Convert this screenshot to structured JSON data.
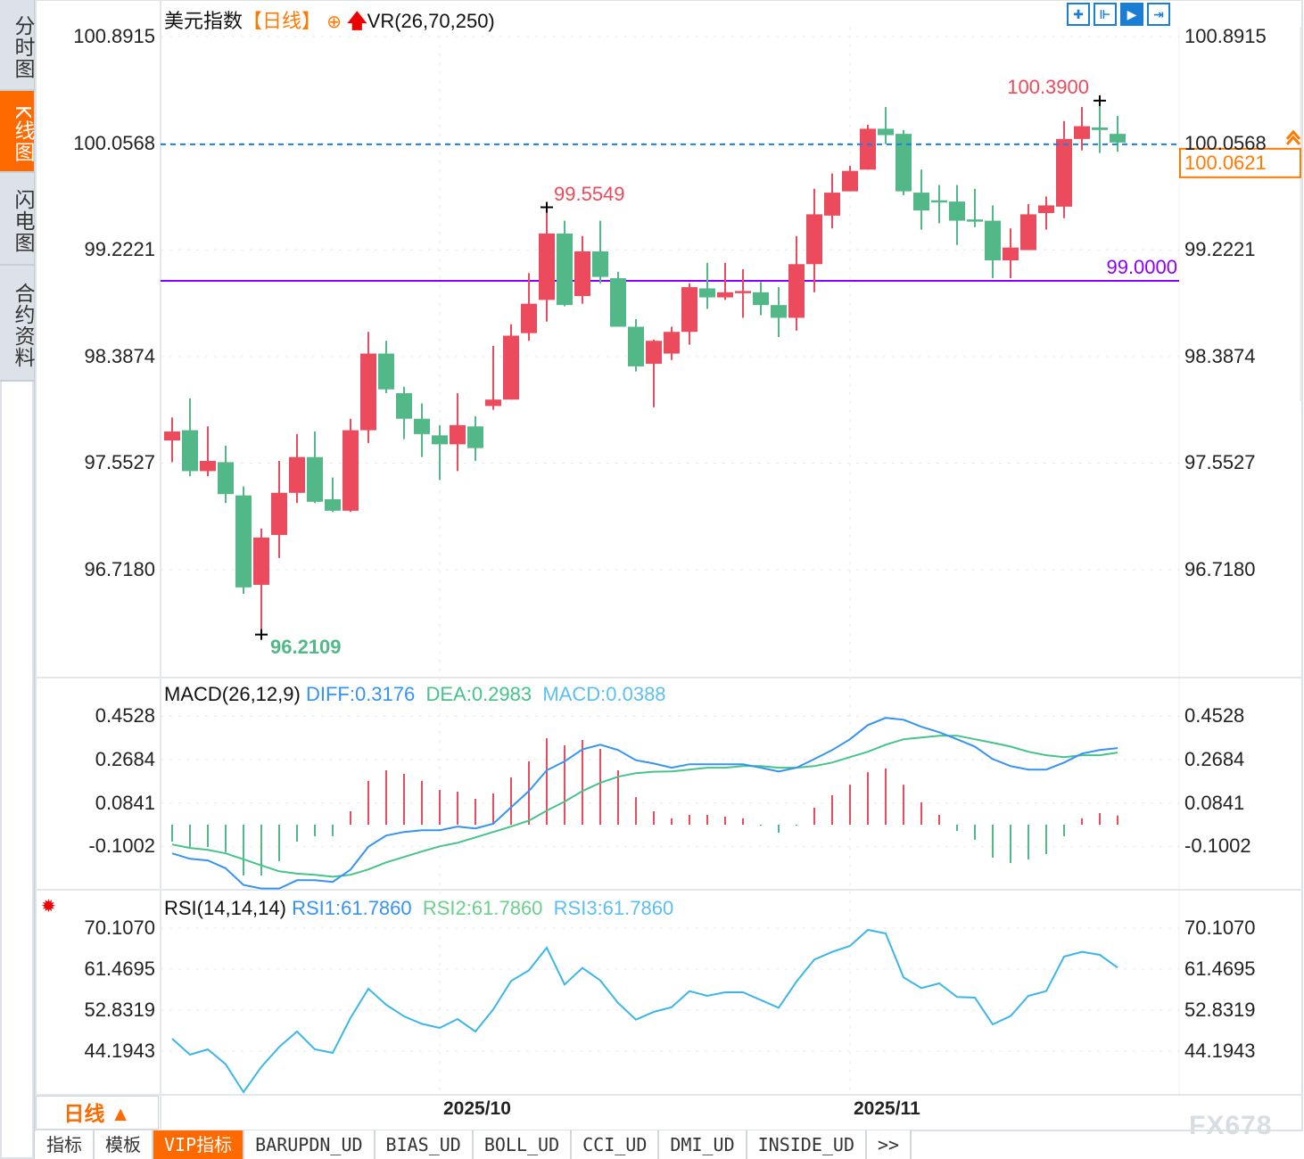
{
  "sidebar": {
    "tabs": [
      {
        "label": "分时图",
        "active": false
      },
      {
        "label": "K线图",
        "active": true
      },
      {
        "label": "闪电图",
        "active": false
      },
      {
        "label": "合约资料",
        "active": false
      }
    ]
  },
  "header": {
    "title": "美元指数",
    "period": "【日线】",
    "indicator": "VR(26,70,250)",
    "add_icon": "circle-plus-icon",
    "arrow_icon": "red-up-arrow-icon"
  },
  "toolbar": {
    "icons": [
      "crosshair-icon",
      "zoom-range-icon",
      "play-range-icon",
      "scroll-right-icon"
    ]
  },
  "colors": {
    "up": "#eb4b5c",
    "down": "#52b887",
    "diff": "#3593f2",
    "dea": "#46c38a",
    "rsi": "#3bb6e8",
    "support": "#8a00ff",
    "last_price": "#ff7a00",
    "accent": "#ff6a00"
  },
  "chart_data": [
    {
      "type": "candlestick",
      "title": "美元指数",
      "y_ticks": [
        "100.8915",
        "100.0568",
        "99.2221",
        "98.3874",
        "97.5527",
        "96.7180"
      ],
      "ylim": [
        96.0,
        101.0
      ],
      "x_labels": [
        {
          "label": "2025/10",
          "index": 15
        },
        {
          "label": "2025/11",
          "index": 38
        }
      ],
      "ohlc": [
        [
          97.73,
          97.91,
          97.56,
          97.8
        ],
        [
          97.81,
          98.06,
          97.45,
          97.49
        ],
        [
          97.49,
          97.84,
          97.45,
          97.57
        ],
        [
          97.56,
          97.69,
          97.24,
          97.31
        ],
        [
          97.3,
          97.37,
          96.53,
          96.58
        ],
        [
          96.6,
          97.04,
          96.2109,
          96.97
        ],
        [
          96.99,
          97.57,
          96.81,
          97.32
        ],
        [
          97.32,
          97.78,
          97.24,
          97.6
        ],
        [
          97.6,
          97.8,
          97.24,
          97.25
        ],
        [
          97.27,
          97.44,
          97.17,
          97.18
        ],
        [
          97.18,
          97.9,
          97.17,
          97.81
        ],
        [
          97.81,
          98.58,
          97.71,
          98.41
        ],
        [
          98.41,
          98.51,
          98.1,
          98.13
        ],
        [
          98.1,
          98.15,
          97.74,
          97.9
        ],
        [
          97.9,
          98.02,
          97.6,
          97.78
        ],
        [
          97.77,
          97.85,
          97.42,
          97.7
        ],
        [
          97.7,
          98.1,
          97.49,
          97.85
        ],
        [
          97.84,
          97.92,
          97.57,
          97.67
        ],
        [
          98.0,
          98.47,
          97.97,
          98.05
        ],
        [
          98.05,
          98.64,
          98.05,
          98.55
        ],
        [
          98.57,
          99.04,
          98.51,
          98.8
        ],
        [
          98.83,
          99.5549,
          98.66,
          99.35
        ],
        [
          99.35,
          99.45,
          98.78,
          98.79
        ],
        [
          98.86,
          99.33,
          98.8,
          99.21
        ],
        [
          99.21,
          99.45,
          98.96,
          99.01
        ],
        [
          99.0,
          99.05,
          98.62,
          98.62
        ],
        [
          98.62,
          98.68,
          98.27,
          98.31
        ],
        [
          98.33,
          98.52,
          97.99,
          98.51
        ],
        [
          98.41,
          98.62,
          98.36,
          98.58
        ],
        [
          98.58,
          98.96,
          98.48,
          98.93
        ],
        [
          98.92,
          99.12,
          98.76,
          98.85
        ],
        [
          98.85,
          99.12,
          98.83,
          98.89
        ],
        [
          98.89,
          99.07,
          98.69,
          98.9
        ],
        [
          98.89,
          98.97,
          98.71,
          98.79
        ],
        [
          98.79,
          98.93,
          98.54,
          98.69
        ],
        [
          98.69,
          99.33,
          98.59,
          99.11
        ],
        [
          99.11,
          99.7,
          98.89,
          99.5
        ],
        [
          99.49,
          99.82,
          99.39,
          99.67
        ],
        [
          99.68,
          99.88,
          99.68,
          99.84
        ],
        [
          99.85,
          100.2,
          99.85,
          100.17
        ],
        [
          100.17,
          100.34,
          100.05,
          100.12
        ],
        [
          100.13,
          100.16,
          99.65,
          99.68
        ],
        [
          99.67,
          99.85,
          99.38,
          99.53
        ],
        [
          99.61,
          99.73,
          99.43,
          99.6
        ],
        [
          99.6,
          99.73,
          99.26,
          99.45
        ],
        [
          99.46,
          99.7,
          99.4,
          99.45
        ],
        [
          99.45,
          99.57,
          99.0,
          99.14
        ],
        [
          99.14,
          99.39,
          99.0,
          99.24
        ],
        [
          99.22,
          99.58,
          99.22,
          99.5
        ],
        [
          99.51,
          99.64,
          99.38,
          99.57
        ],
        [
          99.56,
          100.23,
          99.47,
          100.09
        ],
        [
          100.09,
          100.34,
          100.0,
          100.19
        ],
        [
          100.18,
          100.39,
          99.98,
          100.16
        ],
        [
          100.13,
          100.27,
          99.99,
          100.0621
        ]
      ],
      "annotations": [
        {
          "label": "99.5549",
          "index": 21,
          "value": 99.5549,
          "kind": "high"
        },
        {
          "label": "100.3900",
          "index": 52,
          "value": 100.39,
          "kind": "high"
        },
        {
          "label": "96.2109",
          "index": 5,
          "value": 96.2109,
          "kind": "low"
        }
      ],
      "support_line": {
        "label": "99.0000",
        "value": 99.0
      },
      "last_price": {
        "label": "100.0621",
        "value": 100.0621
      }
    },
    {
      "type": "macd",
      "title": "MACD(26,12,9)",
      "legend": {
        "diff": "DIFF:0.3176",
        "dea": "DEA:0.2983",
        "macd": "MACD:0.0388"
      },
      "y_ticks": [
        "0.4528",
        "0.2684",
        "0.0841",
        "-0.1002"
      ],
      "diff": [
        -0.13,
        -0.153,
        -0.16,
        -0.193,
        -0.264,
        -0.279,
        -0.279,
        -0.244,
        -0.244,
        -0.251,
        -0.199,
        -0.102,
        -0.054,
        -0.039,
        -0.032,
        -0.032,
        -0.016,
        -0.024,
        -0.004,
        0.066,
        0.135,
        0.223,
        0.261,
        0.312,
        0.332,
        0.309,
        0.266,
        0.252,
        0.234,
        0.249,
        0.249,
        0.249,
        0.249,
        0.234,
        0.218,
        0.234,
        0.271,
        0.309,
        0.355,
        0.415,
        0.446,
        0.438,
        0.408,
        0.385,
        0.355,
        0.324,
        0.271,
        0.241,
        0.226,
        0.226,
        0.256,
        0.294,
        0.309,
        0.3176
      ],
      "dea": [
        -0.092,
        -0.107,
        -0.115,
        -0.13,
        -0.155,
        -0.181,
        -0.206,
        -0.216,
        -0.221,
        -0.229,
        -0.221,
        -0.198,
        -0.168,
        -0.145,
        -0.122,
        -0.1,
        -0.085,
        -0.062,
        -0.039,
        -0.016,
        0.009,
        0.052,
        0.09,
        0.135,
        0.17,
        0.196,
        0.211,
        0.217,
        0.218,
        0.226,
        0.234,
        0.234,
        0.241,
        0.241,
        0.234,
        0.234,
        0.241,
        0.256,
        0.279,
        0.302,
        0.332,
        0.355,
        0.362,
        0.37,
        0.37,
        0.355,
        0.34,
        0.324,
        0.302,
        0.287,
        0.279,
        0.287,
        0.287,
        0.2983
      ],
      "macd": [
        -0.072,
        -0.095,
        -0.095,
        -0.117,
        -0.216,
        -0.216,
        -0.155,
        -0.072,
        -0.049,
        -0.049,
        0.057,
        0.186,
        0.231,
        0.216,
        0.186,
        0.148,
        0.14,
        0.11,
        0.133,
        0.201,
        0.269,
        0.367,
        0.337,
        0.36,
        0.322,
        0.231,
        0.117,
        0.057,
        0.027,
        0.042,
        0.042,
        0.034,
        0.027,
        -0.005,
        -0.034,
        -0.005,
        0.072,
        0.125,
        0.17,
        0.223,
        0.239,
        0.17,
        0.095,
        0.042,
        -0.027,
        -0.064,
        -0.14,
        -0.163,
        -0.148,
        -0.125,
        -0.049,
        0.027,
        0.049,
        0.0388
      ]
    },
    {
      "type": "line",
      "title": "RSI(14,14,14)",
      "legend": {
        "rsi1": "RSI1:61.7860",
        "rsi2": "RSI2:61.7860",
        "rsi3": "RSI3:61.7860"
      },
      "y_ticks": [
        "70.1070",
        "61.4695",
        "52.8319",
        "44.1943"
      ],
      "values": [
        46.82,
        43.44,
        44.57,
        41.44,
        35.56,
        40.88,
        45.07,
        48.32,
        44.57,
        43.82,
        51.2,
        57.34,
        53.96,
        51.52,
        49.95,
        49.08,
        50.95,
        48.32,
        52.96,
        58.97,
        61.22,
        65.98,
        58.22,
        61.72,
        59.09,
        54.33,
        50.83,
        52.46,
        53.46,
        56.84,
        55.84,
        56.59,
        56.59,
        54.96,
        53.33,
        58.84,
        63.47,
        65.1,
        66.35,
        69.73,
        68.98,
        59.72,
        57.47,
        58.47,
        55.59,
        55.46,
        49.83,
        51.58,
        55.84,
        56.84,
        64.1,
        65.1,
        64.47,
        61.786
      ]
    }
  ],
  "footer": {
    "period_label": "日线 ▲",
    "tabs": [
      {
        "label": "指标",
        "active": false
      },
      {
        "label": "模板",
        "active": false
      },
      {
        "label": "VIP指标",
        "active": true
      },
      {
        "label": "BARUPDN_UD",
        "active": false
      },
      {
        "label": "BIAS_UD",
        "active": false
      },
      {
        "label": "BOLL_UD",
        "active": false
      },
      {
        "label": "CCI_UD",
        "active": false
      },
      {
        "label": "DMI_UD",
        "active": false
      },
      {
        "label": "INSIDE_UD",
        "active": false
      },
      {
        "label": ">>",
        "active": false
      }
    ],
    "watermark": "FX678"
  }
}
